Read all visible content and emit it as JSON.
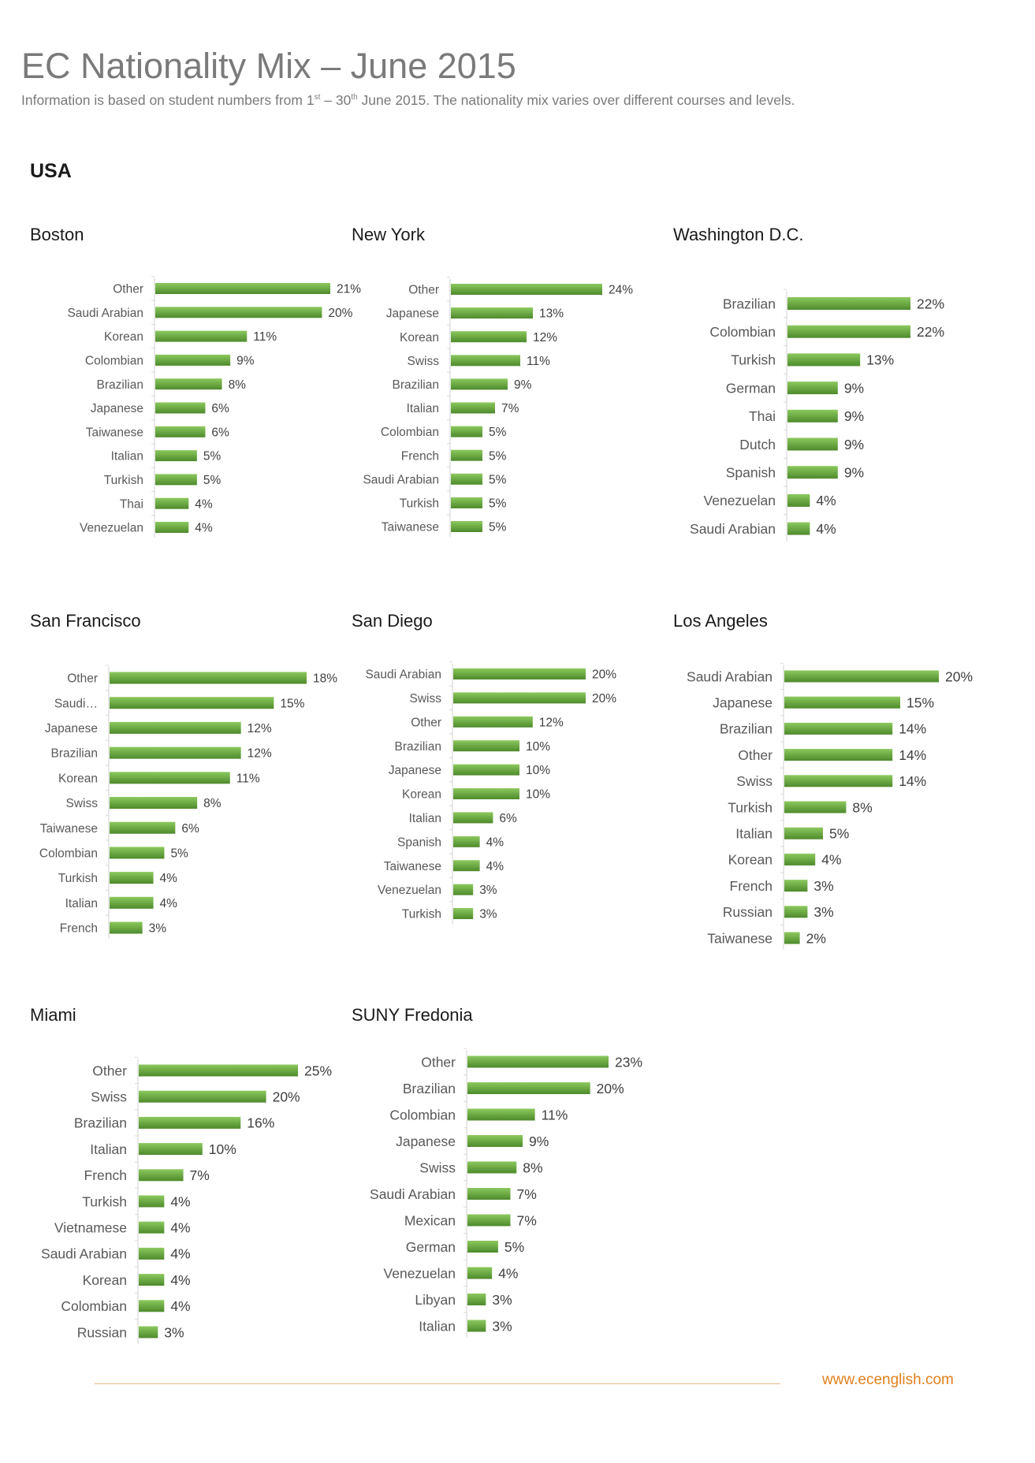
{
  "page": {
    "title": "EC Nationality Mix – June 2015",
    "subtitle": {
      "part1": "Information is based on student numbers from 1",
      "sup1": "st",
      "part2": " – 30",
      "sup2": "th",
      "part3": " June 2015. The nationality mix varies over different courses and levels."
    },
    "region": "USA",
    "footer_url": "www.ecenglish.com"
  },
  "colors": {
    "bar": "#70ad47",
    "bar_dark": "#4e8a2c",
    "axis": "#d9d9d9"
  },
  "chart_data": [
    {
      "id": "boston",
      "title": "Boston",
      "type": "bar",
      "orientation": "horizontal",
      "xlim": [
        0,
        21
      ],
      "categories": [
        "Other",
        "Saudi Arabian",
        "Korean",
        "Colombian",
        "Brazilian",
        "Japanese",
        "Taiwanese",
        "Italian",
        "Turkish",
        "Thai",
        "Venezuelan"
      ],
      "values": [
        21,
        20,
        11,
        9,
        8,
        6,
        6,
        5,
        5,
        4,
        4
      ],
      "labels": [
        "21%",
        "20%",
        "11%",
        "9%",
        "8%",
        "6%",
        "6%",
        "5%",
        "5%",
        "4%",
        "4%"
      ]
    },
    {
      "id": "new-york",
      "title": "New York",
      "type": "bar",
      "orientation": "horizontal",
      "xlim": [
        0,
        24
      ],
      "categories": [
        "Other",
        "Japanese",
        "Korean",
        "Swiss",
        "Brazilian",
        "Italian",
        "Colombian",
        "French",
        "Saudi Arabian",
        "Turkish",
        "Taiwanese"
      ],
      "values": [
        24,
        13,
        12,
        11,
        9,
        7,
        5,
        5,
        5,
        5,
        5
      ],
      "labels": [
        "24%",
        "13%",
        "12%",
        "11%",
        "9%",
        "7%",
        "5%",
        "5%",
        "5%",
        "5%",
        "5%"
      ]
    },
    {
      "id": "washington-dc",
      "title": "Washington D.C.",
      "type": "bar",
      "orientation": "horizontal",
      "xlim": [
        0,
        22
      ],
      "categories": [
        "Brazilian",
        "Colombian",
        "Turkish",
        "German",
        "Thai",
        "Dutch",
        "Spanish",
        "Venezuelan",
        "Saudi Arabian"
      ],
      "values": [
        22,
        22,
        13,
        9,
        9,
        9,
        9,
        4,
        4
      ],
      "labels": [
        "22%",
        "22%",
        "13%",
        "9%",
        "9%",
        "9%",
        "9%",
        "4%",
        "4%"
      ]
    },
    {
      "id": "san-francisco",
      "title": "San Francisco",
      "type": "bar",
      "orientation": "horizontal",
      "xlim": [
        0,
        18
      ],
      "categories": [
        "Other",
        "Saudi…",
        "Japanese",
        "Brazilian",
        "Korean",
        "Swiss",
        "Taiwanese",
        "Colombian",
        "Turkish",
        "Italian",
        "French"
      ],
      "values": [
        18,
        15,
        12,
        12,
        11,
        8,
        6,
        5,
        4,
        4,
        3
      ],
      "labels": [
        "18%",
        "15%",
        "12%",
        "12%",
        "11%",
        "8%",
        "6%",
        "5%",
        "4%",
        "4%",
        "3%"
      ]
    },
    {
      "id": "san-diego",
      "title": "San Diego",
      "type": "bar",
      "orientation": "horizontal",
      "xlim": [
        0,
        20
      ],
      "categories": [
        "Saudi Arabian",
        "Swiss",
        "Other",
        "Brazilian",
        "Japanese",
        "Korean",
        "Italian",
        "Spanish",
        "Taiwanese",
        "Venezuelan",
        "Turkish"
      ],
      "values": [
        20,
        20,
        12,
        10,
        10,
        10,
        6,
        4,
        4,
        3,
        3
      ],
      "labels": [
        "20%",
        "20%",
        "12%",
        "10%",
        "10%",
        "10%",
        "6%",
        "4%",
        "4%",
        "3%",
        "3%"
      ]
    },
    {
      "id": "los-angeles",
      "title": "Los Angeles",
      "type": "bar",
      "orientation": "horizontal",
      "xlim": [
        0,
        20
      ],
      "categories": [
        "Saudi Arabian",
        "Japanese",
        "Brazilian",
        "Other",
        "Swiss",
        "Turkish",
        "Italian",
        "Korean",
        "French",
        "Russian",
        "Taiwanese"
      ],
      "values": [
        20,
        15,
        14,
        14,
        14,
        8,
        5,
        4,
        3,
        3,
        2
      ],
      "labels": [
        "20%",
        "15%",
        "14%",
        "14%",
        "14%",
        "8%",
        "5%",
        "4%",
        "3%",
        "3%",
        "2%"
      ]
    },
    {
      "id": "miami",
      "title": "Miami",
      "type": "bar",
      "orientation": "horizontal",
      "xlim": [
        0,
        25
      ],
      "categories": [
        "Other",
        "Swiss",
        "Brazilian",
        "Italian",
        "French",
        "Turkish",
        "Vietnamese",
        "Saudi Arabian",
        "Korean",
        "Colombian",
        "Russian"
      ],
      "values": [
        25,
        20,
        16,
        10,
        7,
        4,
        4,
        4,
        4,
        4,
        3
      ],
      "labels": [
        "25%",
        "20%",
        "16%",
        "10%",
        "7%",
        "4%",
        "4%",
        "4%",
        "4%",
        "4%",
        "3%"
      ]
    },
    {
      "id": "suny-fredonia",
      "title": "SUNY Fredonia",
      "type": "bar",
      "orientation": "horizontal",
      "xlim": [
        0,
        23
      ],
      "categories": [
        "Other",
        "Brazilian",
        "Colombian",
        "Japanese",
        "Swiss",
        "Saudi Arabian",
        "Mexican",
        "German",
        "Venezuelan",
        "Libyan",
        "Italian"
      ],
      "values": [
        23,
        20,
        11,
        9,
        8,
        7,
        7,
        5,
        4,
        3,
        3
      ],
      "labels": [
        "23%",
        "20%",
        "11%",
        "9%",
        "8%",
        "7%",
        "7%",
        "5%",
        "4%",
        "3%",
        "3%"
      ]
    }
  ]
}
